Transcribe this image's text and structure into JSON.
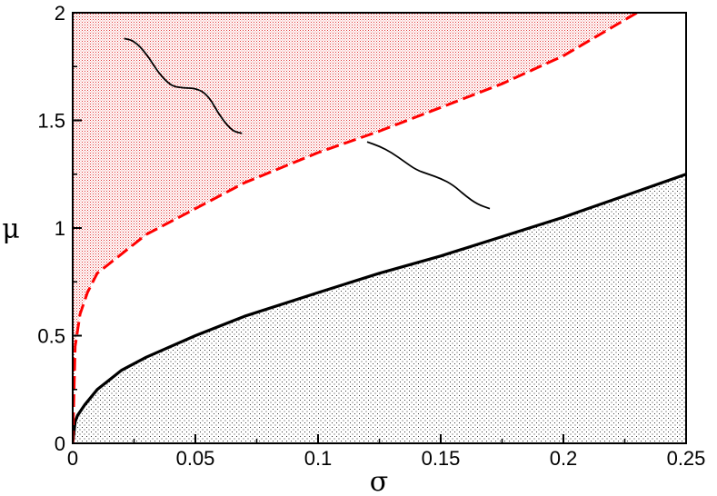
{
  "chart_data": {
    "type": "area",
    "xlabel": "σ",
    "ylabel": "μ",
    "xlim": [
      0,
      0.25
    ],
    "ylim": [
      0,
      2
    ],
    "xticks": [
      {
        "value": 0,
        "label": "0"
      },
      {
        "value": 0.05,
        "label": "0.05"
      },
      {
        "value": 0.1,
        "label": "0.1"
      },
      {
        "value": 0.15,
        "label": "0.15"
      },
      {
        "value": 0.2,
        "label": "0.2"
      },
      {
        "value": 0.25,
        "label": "0.25"
      }
    ],
    "yticks": [
      {
        "value": 0,
        "label": "0"
      },
      {
        "value": 0.5,
        "label": "0.5"
      },
      {
        "value": 1,
        "label": "1"
      },
      {
        "value": 1.5,
        "label": "1.5"
      },
      {
        "value": 2,
        "label": "2"
      }
    ],
    "grid": false,
    "series": [
      {
        "style": "solid",
        "color": "#000000",
        "fill": "below",
        "fill_color": "#000000",
        "x": [
          0,
          0.001,
          0.002,
          0.005,
          0.01,
          0.02,
          0.03,
          0.05,
          0.07,
          0.1,
          0.125,
          0.15,
          0.175,
          0.2,
          0.225,
          0.25
        ],
        "y": [
          0,
          0.1,
          0.13,
          0.18,
          0.25,
          0.34,
          0.4,
          0.5,
          0.59,
          0.7,
          0.79,
          0.87,
          0.96,
          1.05,
          1.15,
          1.25
        ]
      },
      {
        "style": "dashed",
        "color": "#ff0000",
        "fill": "above",
        "fill_color": "#ff0000",
        "x": [
          0,
          0.001,
          0.003,
          0.006,
          0.01,
          0.02,
          0.03,
          0.05,
          0.07,
          0.1,
          0.125,
          0.15,
          0.175,
          0.2,
          0.23
        ],
        "y": [
          0,
          0.45,
          0.6,
          0.7,
          0.79,
          0.88,
          0.97,
          1.09,
          1.21,
          1.35,
          1.45,
          1.56,
          1.67,
          1.8,
          2.0
        ]
      }
    ],
    "annotations": [
      {
        "type": "wavy-line",
        "points": [
          [
            0.021,
            1.88
          ],
          [
            0.025,
            1.87
          ],
          [
            0.03,
            1.81
          ],
          [
            0.035,
            1.72
          ],
          [
            0.04,
            1.66
          ],
          [
            0.045,
            1.65
          ],
          [
            0.05,
            1.65
          ],
          [
            0.055,
            1.62
          ],
          [
            0.06,
            1.52
          ],
          [
            0.065,
            1.45
          ],
          [
            0.069,
            1.44
          ]
        ]
      },
      {
        "type": "wavy-line",
        "points": [
          [
            0.12,
            1.4
          ],
          [
            0.125,
            1.38
          ],
          [
            0.13,
            1.35
          ],
          [
            0.135,
            1.31
          ],
          [
            0.14,
            1.27
          ],
          [
            0.145,
            1.25
          ],
          [
            0.15,
            1.23
          ],
          [
            0.155,
            1.2
          ],
          [
            0.16,
            1.15
          ],
          [
            0.165,
            1.11
          ],
          [
            0.17,
            1.09
          ]
        ]
      }
    ]
  }
}
